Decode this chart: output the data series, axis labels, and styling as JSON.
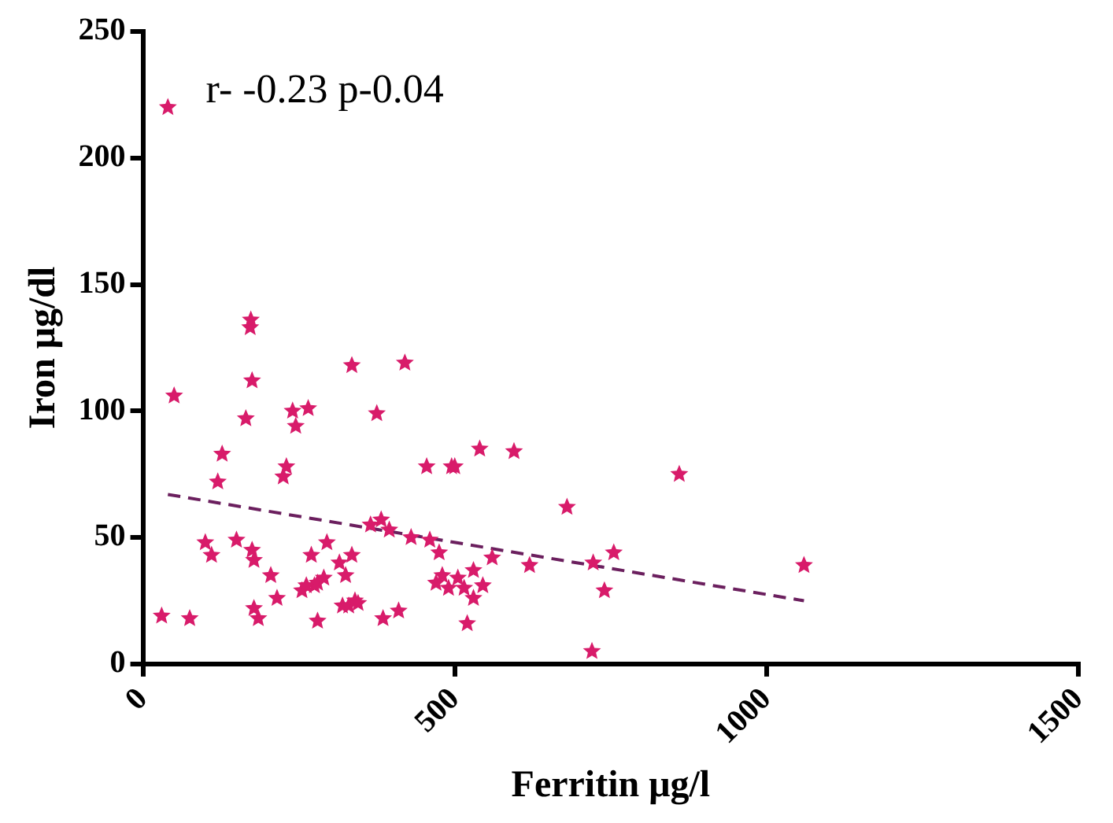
{
  "chart_data": {
    "type": "scatter",
    "xlabel": "Ferritin μg/l",
    "ylabel": "Iron μg/dl",
    "annotations": [
      "r- -0.23 p-0.04"
    ],
    "xlim": [
      0,
      1500
    ],
    "xticks": [
      0,
      500,
      1000,
      1500
    ],
    "ylim": [
      0,
      250
    ],
    "yticks": [
      0,
      50,
      100,
      150,
      200,
      250
    ],
    "grid": false,
    "legend": false,
    "marker": "star",
    "series": [
      {
        "color": "#d81b6a",
        "x": [
          40,
          30,
          75,
          50,
          165,
          175,
          172,
          173,
          120,
          127,
          100,
          110,
          150,
          175,
          178,
          178,
          185,
          205,
          215,
          225,
          230,
          240,
          245,
          265,
          275,
          270,
          280,
          255,
          262,
          280,
          290,
          295,
          315,
          320,
          330,
          325,
          335,
          335,
          340,
          345,
          365,
          375,
          382,
          385,
          395,
          410,
          420,
          430,
          455,
          460,
          470,
          475,
          480,
          490,
          495,
          500,
          505,
          515,
          520,
          530,
          530,
          540,
          545,
          560,
          595,
          620,
          680,
          720,
          722,
          740,
          755,
          860,
          1060
        ],
        "values": [
          220,
          19,
          18,
          106,
          97,
          112,
          133,
          136,
          72,
          83,
          48,
          43,
          49,
          45,
          41,
          22,
          18,
          35,
          26,
          74,
          78,
          100,
          94,
          101,
          31,
          43,
          17,
          29,
          31,
          32,
          34,
          48,
          40,
          23,
          23,
          35,
          43,
          118,
          25,
          24,
          55,
          99,
          57,
          18,
          53,
          21,
          119,
          50,
          78,
          49,
          32,
          44,
          35,
          30,
          78,
          78,
          34,
          30,
          16,
          37,
          26,
          85,
          31,
          42,
          84,
          39,
          62,
          5,
          40,
          29,
          44,
          75,
          39
        ]
      },
      {
        "type": "line",
        "color": "#6b1f5e",
        "line_style": "dashed",
        "marker": "none",
        "x": [
          40,
          1060
        ],
        "values": [
          67,
          25
        ]
      }
    ]
  }
}
